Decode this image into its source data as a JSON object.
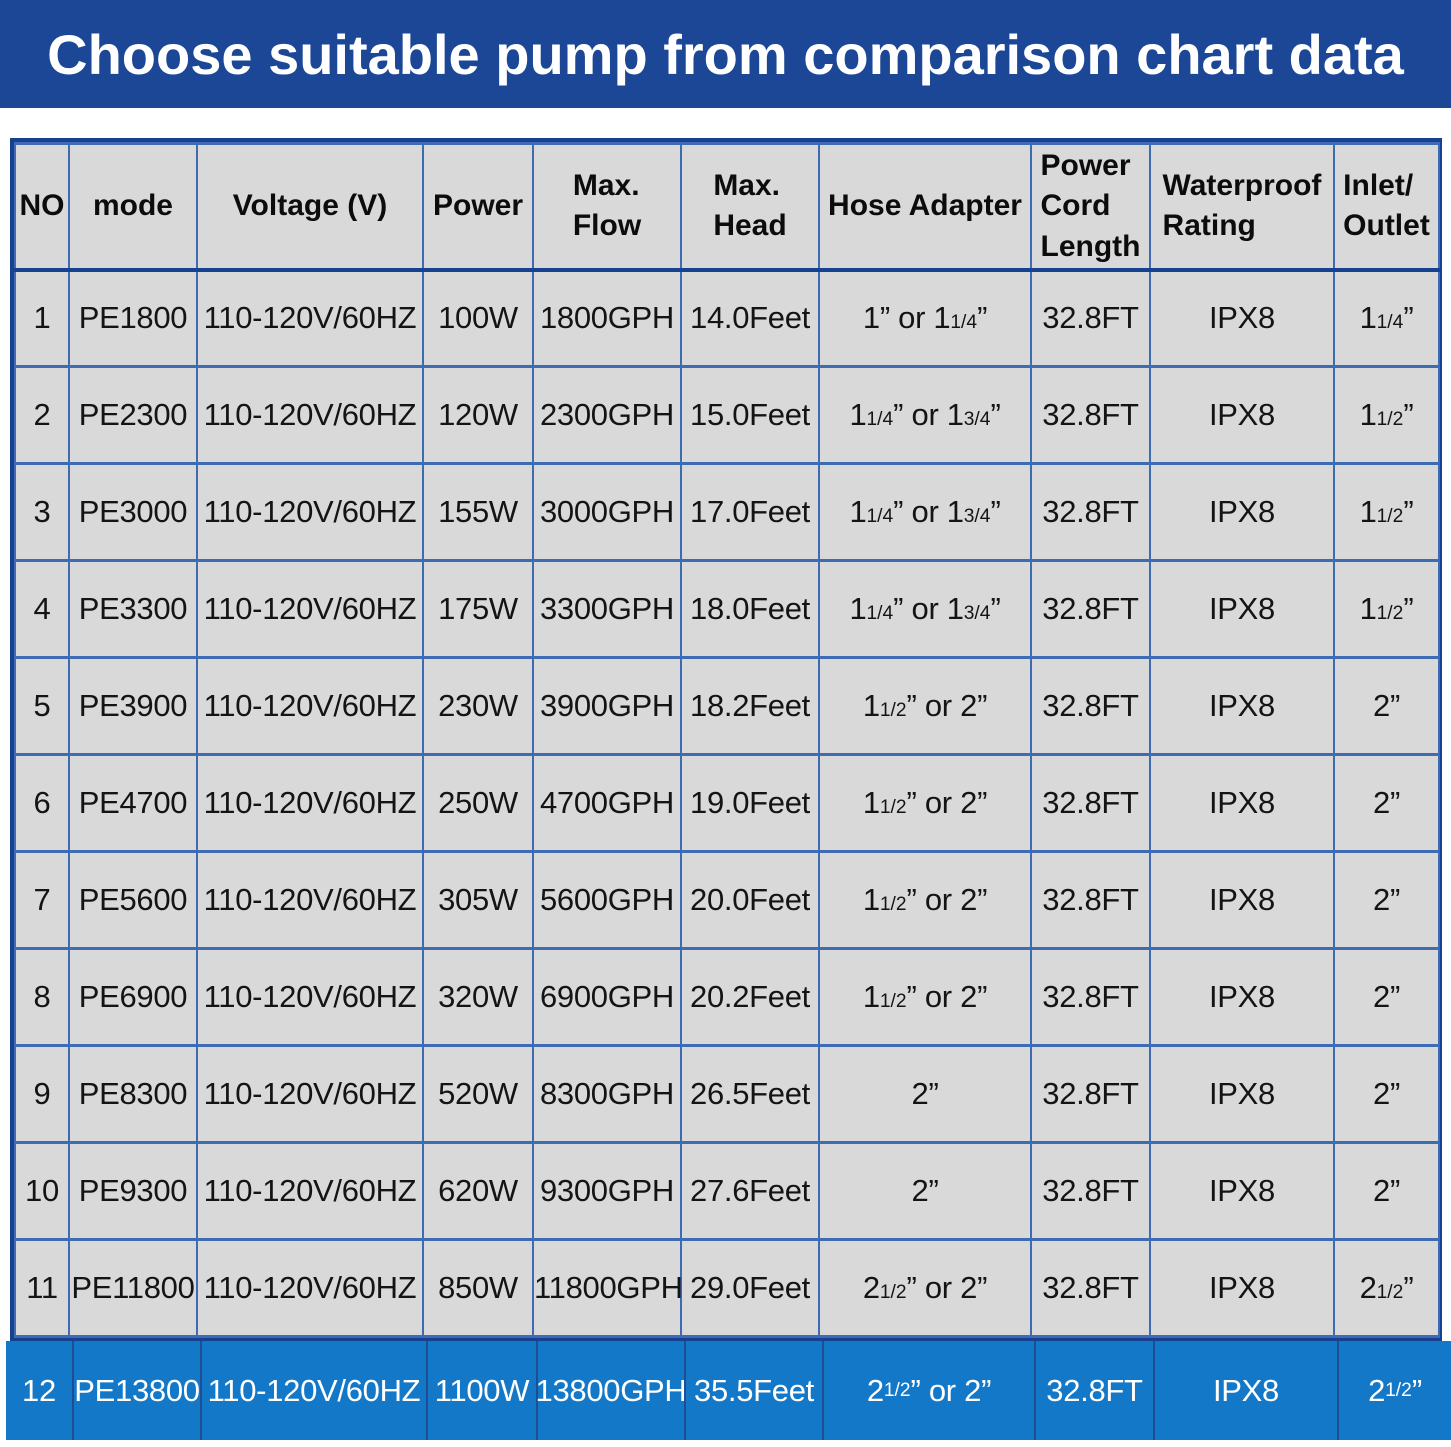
{
  "banner": {
    "title": "Choose suitable pump from comparison chart data"
  },
  "colors": {
    "banner_bg": "#1c4796",
    "banner_text": "#ffffff",
    "page_bg": "#ffffff",
    "table_border": "#16418f",
    "grid_line": "#3f6ab4",
    "cell_bg": "#d9d9d9",
    "cell_text": "#141414",
    "highlight_bg": "#1478c8",
    "highlight_divider": "#1d4e94",
    "highlight_text": "#ffffff"
  },
  "table": {
    "header_labels": [
      "NO",
      "mode",
      "Voltage (V)",
      "Power",
      "Max.\nFlow",
      "Max.\nHead",
      "Hose Adapter",
      "Power\nCord\nLength",
      "Waterproof\nRating",
      "Inlet/\nOutlet"
    ]
  },
  "chart_data": {
    "type": "table",
    "title": "Choose suitable pump from comparison chart data",
    "columns": [
      "NO",
      "mode",
      "Voltage (V)",
      "Power",
      "Max. Flow",
      "Max. Head",
      "Hose Adapter",
      "Power Cord Length",
      "Waterproof Rating",
      "Inlet/Outlet"
    ],
    "rows": [
      [
        "1",
        "PE1800",
        "110-120V/60HZ",
        "100W",
        "1800GPH",
        "14.0Feet",
        "1” or 1 1/4”",
        "32.8FT",
        "IPX8",
        "1 1/4”"
      ],
      [
        "2",
        "PE2300",
        "110-120V/60HZ",
        "120W",
        "2300GPH",
        "15.0Feet",
        "1 1/4” or 1 3/4”",
        "32.8FT",
        "IPX8",
        "1 1/2”"
      ],
      [
        "3",
        "PE3000",
        "110-120V/60HZ",
        "155W",
        "3000GPH",
        "17.0Feet",
        "1 1/4” or 1 3/4”",
        "32.8FT",
        "IPX8",
        "1 1/2”"
      ],
      [
        "4",
        "PE3300",
        "110-120V/60HZ",
        "175W",
        "3300GPH",
        "18.0Feet",
        "1 1/4” or 1 3/4”",
        "32.8FT",
        "IPX8",
        "1 1/2”"
      ],
      [
        "5",
        "PE3900",
        "110-120V/60HZ",
        "230W",
        "3900GPH",
        "18.2Feet",
        "1 1/2” or 2”",
        "32.8FT",
        "IPX8",
        "2”"
      ],
      [
        "6",
        "PE4700",
        "110-120V/60HZ",
        "250W",
        "4700GPH",
        "19.0Feet",
        "1 1/2” or 2”",
        "32.8FT",
        "IPX8",
        "2”"
      ],
      [
        "7",
        "PE5600",
        "110-120V/60HZ",
        "305W",
        "5600GPH",
        "20.0Feet",
        "1 1/2” or 2”",
        "32.8FT",
        "IPX8",
        "2”"
      ],
      [
        "8",
        "PE6900",
        "110-120V/60HZ",
        "320W",
        "6900GPH",
        "20.2Feet",
        "1 1/2” or 2”",
        "32.8FT",
        "IPX8",
        "2”"
      ],
      [
        "9",
        "PE8300",
        "110-120V/60HZ",
        "520W",
        "8300GPH",
        "26.5Feet",
        "2”",
        "32.8FT",
        "IPX8",
        "2”"
      ],
      [
        "10",
        "PE9300",
        "110-120V/60HZ",
        "620W",
        "9300GPH",
        "27.6Feet",
        "2”",
        "32.8FT",
        "IPX8",
        "2”"
      ],
      [
        "11",
        "PE11800",
        "110-120V/60HZ",
        "850W",
        "11800GPH",
        "29.0Feet",
        "2 1/2” or 2”",
        "32.8FT",
        "IPX8",
        "2 1/2”"
      ],
      [
        "12",
        "PE13800",
        "110-120V/60HZ",
        "1100W",
        "13800GPH",
        "35.5Feet",
        "2 1/2” or 2”",
        "32.8FT",
        "IPX8",
        "2 1/2”"
      ]
    ],
    "highlighted_row_no": "12"
  }
}
